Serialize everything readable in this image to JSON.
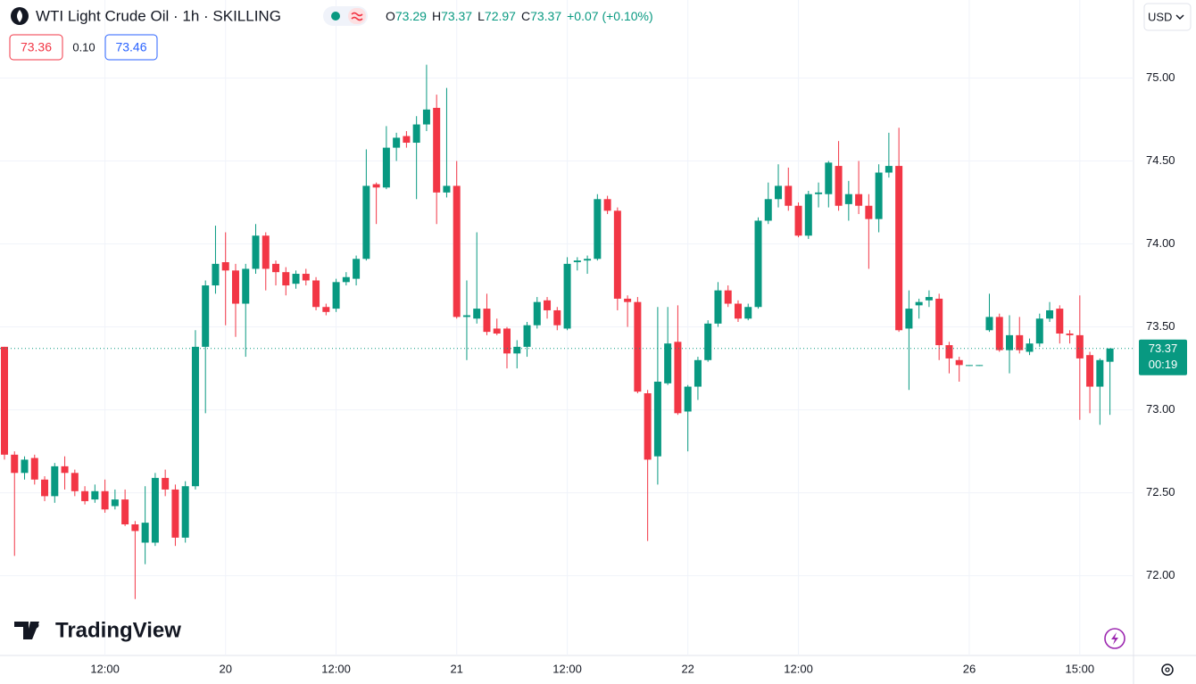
{
  "chart_data": {
    "type": "candlestick",
    "title": "WTI Light Crude Oil · 1h · SKILLING",
    "ohlc_legend": [
      {
        "label": "O",
        "value": "73.29"
      },
      {
        "label": "H",
        "value": "73.37"
      },
      {
        "label": "L",
        "value": "72.97"
      },
      {
        "label": "C",
        "value": "73.37"
      }
    ],
    "change": "+0.07 (+0.10%)",
    "sell_price": "73.36",
    "spread": "0.10",
    "buy_price": "73.46",
    "currency": "USD",
    "brand": "TradingView",
    "last_price": 73.37,
    "countdown": "00:19",
    "up_color": "#089981",
    "down_color": "#f23645",
    "grid": true,
    "ylim": [
      71.52,
      75.47
    ],
    "yticks": [
      {
        "value": 72,
        "label": "72.00"
      },
      {
        "value": 72.5,
        "label": "72.50"
      },
      {
        "value": 73,
        "label": "73.00"
      },
      {
        "value": 73.5,
        "label": "73.50"
      },
      {
        "value": 74,
        "label": "74.00"
      },
      {
        "value": 74.5,
        "label": "74.50"
      },
      {
        "value": 75,
        "label": "75.00"
      }
    ],
    "categories": [
      null,
      null,
      null,
      null,
      null,
      null,
      null,
      null,
      null,
      null,
      "12:00",
      null,
      null,
      null,
      null,
      null,
      null,
      null,
      null,
      null,
      null,
      null,
      "20",
      null,
      null,
      null,
      null,
      null,
      null,
      null,
      null,
      null,
      null,
      "12:00",
      null,
      null,
      null,
      null,
      null,
      null,
      null,
      null,
      null,
      null,
      null,
      "21",
      null,
      null,
      null,
      null,
      null,
      null,
      null,
      null,
      null,
      null,
      "12:00",
      null,
      null,
      null,
      null,
      null,
      null,
      null,
      null,
      null,
      null,
      null,
      "22",
      null,
      null,
      null,
      null,
      null,
      null,
      null,
      null,
      null,
      null,
      "12:00",
      null,
      null,
      null,
      null,
      null,
      null,
      null,
      null,
      null,
      null,
      null,
      null,
      null,
      null,
      null,
      null,
      "26",
      null,
      null,
      null,
      null,
      null,
      null,
      null,
      null,
      null,
      null,
      "15:00",
      null,
      null,
      null
    ],
    "open": [
      73.38,
      72.73,
      72.62,
      72.71,
      72.58,
      72.48,
      72.66,
      72.62,
      72.51,
      72.46,
      72.51,
      72.42,
      72.46,
      72.31,
      72.2,
      72.2,
      72.59,
      72.52,
      72.23,
      72.54,
      73.38,
      73.75,
      73.89,
      73.84,
      73.64,
      73.85,
      74.05,
      73.88,
      73.83,
      73.76,
      73.82,
      73.78,
      73.62,
      73.61,
      73.77,
      73.79,
      73.91,
      74.36,
      74.34,
      74.58,
      74.65,
      74.61,
      74.72,
      74.82,
      74.31,
      74.35,
      73.56,
      73.55,
      73.61,
      73.49,
      73.49,
      73.34,
      73.38,
      73.51,
      73.66,
      73.6,
      73.49,
      73.89,
      73.9,
      73.91,
      74.27,
      74.2,
      73.67,
      73.65,
      73.1,
      72.72,
      73.16,
      73.41,
      72.99,
      73.14,
      73.3,
      73.52,
      73.72,
      73.64,
      73.55,
      73.62,
      74.14,
      74.27,
      74.35,
      74.23,
      74.05,
      74.3,
      74.3,
      74.47,
      74.24,
      74.3,
      74.23,
      74.15,
      74.43,
      74.47,
      73.49,
      73.63,
      73.66,
      73.67,
      73.39,
      73.3,
      73.27,
      73.27,
      73.48,
      73.56,
      73.36,
      73.45,
      73.35,
      73.4,
      73.55,
      73.61,
      73.46,
      73.45,
      73.33,
      73.14,
      73.29
    ],
    "high": [
      73.38,
      72.75,
      72.72,
      72.73,
      72.6,
      72.68,
      72.72,
      72.64,
      72.54,
      72.55,
      72.58,
      72.52,
      72.52,
      72.33,
      72.54,
      72.62,
      72.64,
      72.55,
      72.57,
      73.48,
      73.78,
      74.11,
      74.07,
      73.88,
      73.88,
      74.12,
      74.07,
      73.9,
      73.86,
      73.84,
      73.85,
      73.8,
      73.64,
      73.79,
      73.83,
      73.93,
      74.57,
      74.37,
      74.71,
      74.67,
      74.68,
      74.77,
      75.08,
      74.9,
      74.94,
      74.5,
      73.78,
      74.07,
      73.7,
      73.55,
      73.5,
      73.42,
      73.53,
      73.68,
      73.68,
      73.62,
      73.92,
      73.92,
      73.93,
      74.3,
      74.29,
      74.22,
      73.69,
      73.68,
      73.12,
      73.62,
      73.62,
      73.63,
      73.15,
      73.32,
      73.54,
      73.77,
      73.75,
      73.66,
      73.64,
      74.16,
      74.37,
      74.48,
      74.46,
      74.25,
      74.32,
      74.37,
      74.5,
      74.62,
      74.38,
      74.5,
      74.3,
      74.48,
      74.67,
      74.7,
      73.72,
      73.67,
      73.72,
      73.7,
      73.41,
      73.32,
      73.27,
      73.27,
      73.7,
      73.58,
      73.57,
      73.56,
      73.43,
      73.58,
      73.65,
      73.63,
      73.48,
      73.69,
      73.35,
      73.31,
      73.37
    ],
    "low": [
      72.7,
      72.12,
      72.58,
      72.55,
      72.45,
      72.44,
      72.52,
      72.48,
      72.43,
      72.44,
      72.38,
      72.4,
      72.3,
      71.86,
      72.07,
      72.18,
      72.48,
      72.18,
      72.2,
      72.52,
      72.98,
      73.7,
      73.51,
      73.44,
      73.32,
      73.82,
      73.72,
      73.75,
      73.69,
      73.73,
      73.75,
      73.6,
      73.57,
      73.59,
      73.75,
      73.75,
      73.9,
      74.12,
      74.33,
      74.5,
      74.58,
      74.27,
      74.68,
      74.12,
      74.28,
      73.55,
      73.3,
      73.52,
      73.45,
      73.45,
      73.25,
      73.25,
      73.32,
      73.49,
      73.55,
      73.48,
      73.48,
      73.84,
      73.82,
      73.9,
      74.18,
      73.6,
      73.5,
      73.1,
      72.21,
      72.55,
      73.15,
      72.97,
      72.75,
      73.06,
      73.29,
      73.5,
      73.62,
      73.53,
      73.54,
      73.61,
      74.12,
      74.22,
      74.2,
      74.04,
      74.03,
      74.22,
      74.22,
      74.2,
      74.14,
      74.18,
      73.85,
      74.07,
      74.4,
      73.47,
      73.12,
      73.55,
      73.62,
      73.3,
      73.22,
      73.17,
      73.27,
      73.27,
      73.47,
      73.35,
      73.22,
      73.34,
      73.33,
      73.38,
      73.53,
      73.4,
      73.4,
      72.94,
      72.98,
      72.91,
      72.97
    ],
    "close": [
      72.73,
      72.62,
      72.7,
      72.58,
      72.48,
      72.66,
      72.62,
      72.51,
      72.45,
      72.51,
      72.4,
      72.46,
      72.31,
      72.27,
      72.32,
      72.59,
      72.52,
      72.23,
      72.54,
      73.38,
      73.75,
      73.88,
      73.84,
      73.64,
      73.85,
      74.05,
      73.85,
      73.83,
      73.75,
      73.82,
      73.78,
      73.62,
      73.59,
      73.77,
      73.8,
      73.91,
      74.35,
      74.34,
      74.58,
      74.64,
      74.61,
      74.72,
      74.81,
      74.31,
      74.35,
      73.56,
      73.57,
      73.61,
      73.47,
      73.46,
      73.34,
      73.38,
      73.51,
      73.65,
      73.6,
      73.51,
      73.88,
      73.9,
      73.91,
      74.27,
      74.2,
      73.67,
      73.65,
      73.11,
      72.7,
      73.17,
      73.4,
      72.98,
      73.14,
      73.3,
      73.52,
      73.72,
      73.64,
      73.55,
      73.62,
      74.14,
      74.27,
      74.35,
      74.23,
      74.05,
      74.3,
      74.31,
      74.49,
      74.23,
      74.3,
      74.23,
      74.15,
      74.43,
      74.47,
      73.48,
      73.61,
      73.65,
      73.68,
      73.39,
      73.31,
      73.27,
      73.27,
      73.27,
      73.56,
      73.36,
      73.45,
      73.36,
      73.4,
      73.55,
      73.6,
      73.46,
      73.45,
      73.31,
      73.14,
      73.3,
      73.37
    ]
  }
}
